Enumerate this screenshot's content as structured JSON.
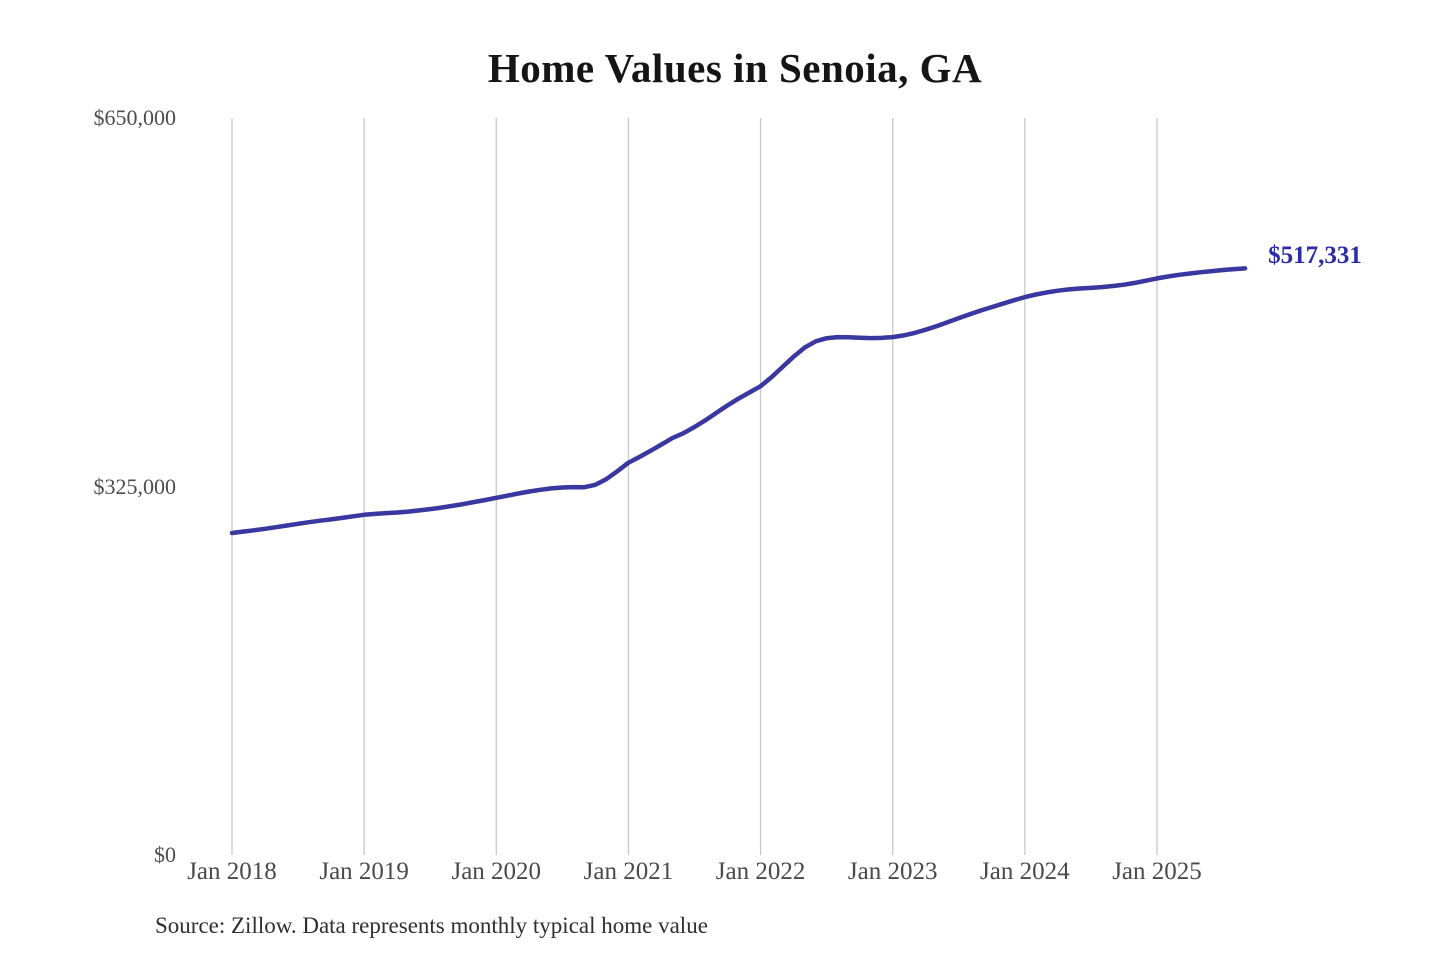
{
  "title": "Home Values in Senoia, GA",
  "source_note": "Source: Zillow. Data represents monthly typical home value",
  "chart_data": {
    "type": "line",
    "title": "Home Values in Senoia, GA",
    "x_domain": [
      "Jan 2018",
      "Sep 2025"
    ],
    "x_interval": "monthly",
    "x_tick_labels": [
      "Jan 2018",
      "Jan 2019",
      "Jan 2020",
      "Jan 2021",
      "Jan 2022",
      "Jan 2023",
      "Jan 2024",
      "Jan 2025"
    ],
    "y_ticks": [
      {
        "value": 0,
        "label": "$0"
      },
      {
        "value": 325000,
        "label": "$325,000"
      },
      {
        "value": 650000,
        "label": "$650,000"
      }
    ],
    "ylim": [
      0,
      650000
    ],
    "grid": "vertical-only",
    "legend": "none",
    "end_label": {
      "text": "$517,331"
    },
    "series": [
      {
        "name": "Monthly typical home value",
        "values": [
          284000,
          285200,
          286400,
          287700,
          289100,
          290600,
          292100,
          293500,
          294800,
          296000,
          297300,
          298700,
          300000,
          300800,
          301500,
          302100,
          302900,
          303900,
          305100,
          306400,
          307900,
          309500,
          311300,
          313100,
          315000,
          316900,
          318800,
          320600,
          322100,
          323300,
          324100,
          324500,
          324400,
          326500,
          331500,
          338500,
          346000,
          351000,
          356500,
          362000,
          367800,
          372000,
          377500,
          383500,
          390000,
          396500,
          402500,
          408000,
          413500,
          421500,
          430500,
          439500,
          447500,
          453000,
          455800,
          456800,
          456600,
          456200,
          455900,
          456100,
          456800,
          458300,
          460500,
          463300,
          466500,
          470000,
          473500,
          477000,
          480200,
          483200,
          486200,
          489200,
          492000,
          494300,
          496200,
          497700,
          498800,
          499600,
          500200,
          500900,
          501800,
          503000,
          504600,
          506500,
          508500,
          510200,
          511700,
          512900,
          514000,
          515000,
          515900,
          516700,
          517331
        ]
      }
    ],
    "colors": {
      "line": "#3a37a0",
      "end_label": "#2b2aa9",
      "grid": "#c9c9c9",
      "axis_text": "#4a4a4a",
      "title_text": "#151515",
      "source_text": "#2f2f2f"
    }
  }
}
